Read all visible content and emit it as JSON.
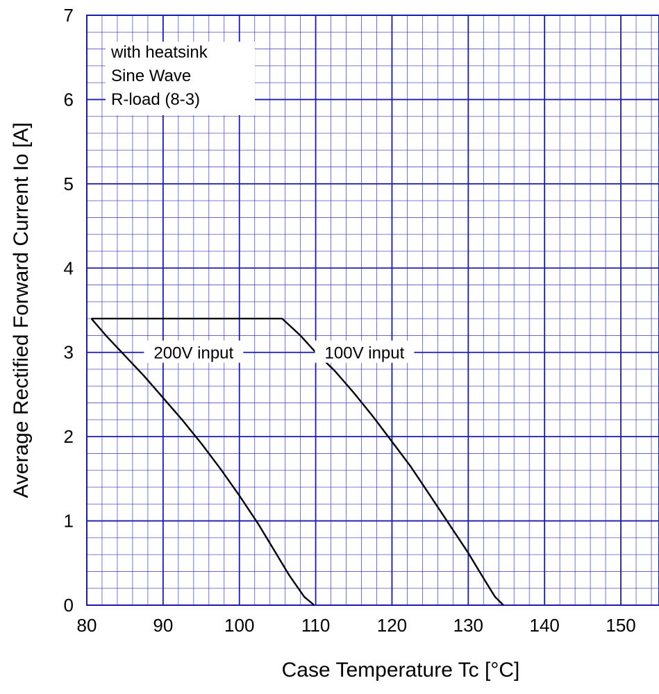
{
  "chart_data": {
    "type": "line",
    "title": "",
    "xlabel": "Case Temperature  Tc  [°C]",
    "ylabel": "Average Rectified Forward Current  Io [A]",
    "xlim": [
      80,
      155
    ],
    "ylim": [
      0,
      7
    ],
    "x_ticks": [
      80,
      90,
      100,
      110,
      120,
      130,
      140,
      150
    ],
    "y_ticks": [
      0,
      1,
      2,
      3,
      4,
      5,
      6,
      7
    ],
    "x_tick_labels": [
      "80",
      "90",
      "100",
      "110",
      "120",
      "130",
      "140",
      "150"
    ],
    "y_tick_labels": [
      "0",
      "1",
      "2",
      "3",
      "4",
      "5",
      "6",
      "7"
    ],
    "grid": true,
    "minor_grid": true,
    "colors": {
      "grid": "#1a1ab0",
      "line": "#000000",
      "background": "#ffffff"
    },
    "notes": [
      "with  heatsink",
      "Sine Wave",
      "R-load  (8-3)"
    ],
    "series": [
      {
        "name": "200V input",
        "x": [
          80.6,
          82.5,
          85,
          87.5,
          90,
          92.5,
          95,
          97.5,
          100,
          102.5,
          104.5,
          106.5,
          108.5,
          109.8
        ],
        "y": [
          3.4,
          3.2,
          2.96,
          2.72,
          2.46,
          2.2,
          1.92,
          1.62,
          1.3,
          0.96,
          0.66,
          0.36,
          0.1,
          0
        ]
      },
      {
        "name": "100V input",
        "x": [
          80.6,
          105.6,
          108,
          110,
          112.5,
          115,
          117.5,
          120,
          122.5,
          125,
          127.5,
          130,
          132,
          133.5,
          134.6
        ],
        "y": [
          3.4,
          3.4,
          3.2,
          3.0,
          2.78,
          2.52,
          2.24,
          1.94,
          1.64,
          1.3,
          0.96,
          0.62,
          0.32,
          0.1,
          0
        ]
      }
    ]
  }
}
